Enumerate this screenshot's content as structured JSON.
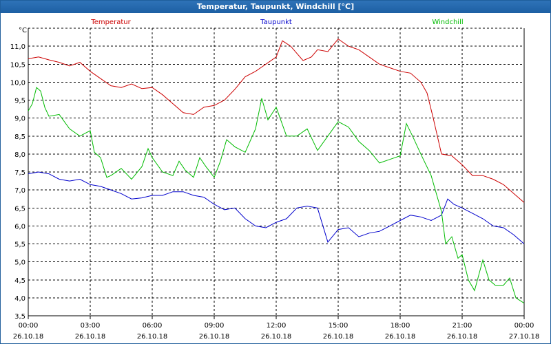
{
  "window": {
    "title": "Temperatur, Taupunkt, Windchill [°C]"
  },
  "chart_data": {
    "type": "line",
    "title": "Temperatur, Taupunkt, Windchill [°C]",
    "ylabel": "°C",
    "xlabel": "",
    "ylim": [
      3.5,
      11.5
    ],
    "xlim": [
      0,
      24
    ],
    "grid": true,
    "yticks": [
      "3,5",
      "4,0",
      "4,5",
      "5,0",
      "5,5",
      "6,0",
      "6,5",
      "7,0",
      "7,5",
      "8,0",
      "8,5",
      "9,0",
      "9,5",
      "10,0",
      "10,5",
      "11,0"
    ],
    "xticks": [
      {
        "hour": 0,
        "time": "00:00",
        "date": "26.10.18"
      },
      {
        "hour": 3,
        "time": "03:00",
        "date": "26.10.18"
      },
      {
        "hour": 6,
        "time": "06:00",
        "date": "26.10.18"
      },
      {
        "hour": 9,
        "time": "09:00",
        "date": "26.10.18"
      },
      {
        "hour": 12,
        "time": "12:00",
        "date": "26.10.18"
      },
      {
        "hour": 15,
        "time": "15:00",
        "date": "26.10.18"
      },
      {
        "hour": 18,
        "time": "18:00",
        "date": "26.10.18"
      },
      {
        "hour": 21,
        "time": "21:00",
        "date": "26.10.18"
      },
      {
        "hour": 24,
        "time": "00:00",
        "date": "27.10.18"
      }
    ],
    "series": [
      {
        "name": "Temperatur",
        "color": "#cc0000",
        "points": [
          [
            0,
            10.65
          ],
          [
            0.5,
            10.7
          ],
          [
            1,
            10.62
          ],
          [
            1.5,
            10.55
          ],
          [
            2,
            10.45
          ],
          [
            2.5,
            10.55
          ],
          [
            3,
            10.3
          ],
          [
            3.5,
            10.1
          ],
          [
            4,
            9.9
          ],
          [
            4.5,
            9.85
          ],
          [
            5,
            9.95
          ],
          [
            5.5,
            9.82
          ],
          [
            6,
            9.85
          ],
          [
            6.5,
            9.65
          ],
          [
            7,
            9.4
          ],
          [
            7.5,
            9.15
          ],
          [
            8,
            9.1
          ],
          [
            8.5,
            9.3
          ],
          [
            9,
            9.35
          ],
          [
            9.5,
            9.5
          ],
          [
            10,
            9.8
          ],
          [
            10.5,
            10.15
          ],
          [
            11,
            10.3
          ],
          [
            11.5,
            10.5
          ],
          [
            12,
            10.7
          ],
          [
            12.3,
            11.15
          ],
          [
            12.7,
            11.0
          ],
          [
            13,
            10.8
          ],
          [
            13.3,
            10.6
          ],
          [
            13.7,
            10.7
          ],
          [
            14,
            10.9
          ],
          [
            14.5,
            10.85
          ],
          [
            15,
            11.2
          ],
          [
            15.5,
            11.0
          ],
          [
            16,
            10.9
          ],
          [
            16.5,
            10.7
          ],
          [
            17,
            10.5
          ],
          [
            17.5,
            10.4
          ],
          [
            18,
            10.3
          ],
          [
            18.5,
            10.25
          ],
          [
            19,
            10.0
          ],
          [
            19.3,
            9.7
          ],
          [
            19.6,
            9.0
          ],
          [
            19.8,
            8.5
          ],
          [
            20,
            8.0
          ],
          [
            20.5,
            7.95
          ],
          [
            21,
            7.7
          ],
          [
            21.5,
            7.4
          ],
          [
            22,
            7.4
          ],
          [
            22.5,
            7.3
          ],
          [
            23,
            7.15
          ],
          [
            23.5,
            6.9
          ],
          [
            24,
            6.65
          ]
        ]
      },
      {
        "name": "Taupunkt",
        "color": "#0000cc",
        "points": [
          [
            0,
            7.45
          ],
          [
            0.5,
            7.5
          ],
          [
            1,
            7.45
          ],
          [
            1.5,
            7.3
          ],
          [
            2,
            7.25
          ],
          [
            2.5,
            7.3
          ],
          [
            3,
            7.15
          ],
          [
            3.5,
            7.1
          ],
          [
            4,
            7.0
          ],
          [
            4.5,
            6.9
          ],
          [
            5,
            6.75
          ],
          [
            5.5,
            6.78
          ],
          [
            6,
            6.85
          ],
          [
            6.5,
            6.85
          ],
          [
            7,
            6.95
          ],
          [
            7.5,
            6.95
          ],
          [
            8,
            6.85
          ],
          [
            8.5,
            6.8
          ],
          [
            9,
            6.6
          ],
          [
            9.5,
            6.45
          ],
          [
            10,
            6.5
          ],
          [
            10.5,
            6.2
          ],
          [
            11,
            6.0
          ],
          [
            11.5,
            5.95
          ],
          [
            12,
            6.1
          ],
          [
            12.5,
            6.2
          ],
          [
            13,
            6.5
          ],
          [
            13.5,
            6.55
          ],
          [
            14,
            6.5
          ],
          [
            14.5,
            5.55
          ],
          [
            15,
            5.9
          ],
          [
            15.5,
            5.95
          ],
          [
            16,
            5.7
          ],
          [
            16.5,
            5.8
          ],
          [
            17,
            5.85
          ],
          [
            17.5,
            6.0
          ],
          [
            18,
            6.15
          ],
          [
            18.5,
            6.3
          ],
          [
            19,
            6.25
          ],
          [
            19.5,
            6.15
          ],
          [
            20,
            6.3
          ],
          [
            20.3,
            6.75
          ],
          [
            20.6,
            6.6
          ],
          [
            21,
            6.5
          ],
          [
            21.5,
            6.35
          ],
          [
            22,
            6.2
          ],
          [
            22.5,
            6.0
          ],
          [
            23,
            5.95
          ],
          [
            23.5,
            5.75
          ],
          [
            24,
            5.5
          ]
        ]
      },
      {
        "name": "Windchill",
        "color": "#00bb00",
        "points": [
          [
            0,
            9.2
          ],
          [
            0.2,
            9.4
          ],
          [
            0.4,
            9.85
          ],
          [
            0.6,
            9.75
          ],
          [
            0.8,
            9.3
          ],
          [
            1,
            9.05
          ],
          [
            1.5,
            9.1
          ],
          [
            2,
            8.7
          ],
          [
            2.5,
            8.5
          ],
          [
            3,
            8.65
          ],
          [
            3.2,
            8.05
          ],
          [
            3.5,
            7.9
          ],
          [
            3.8,
            7.35
          ],
          [
            4,
            7.4
          ],
          [
            4.5,
            7.6
          ],
          [
            5,
            7.3
          ],
          [
            5.5,
            7.65
          ],
          [
            5.8,
            8.15
          ],
          [
            6,
            7.9
          ],
          [
            6.5,
            7.5
          ],
          [
            7,
            7.4
          ],
          [
            7.3,
            7.8
          ],
          [
            7.6,
            7.55
          ],
          [
            8,
            7.35
          ],
          [
            8.3,
            7.9
          ],
          [
            8.6,
            7.65
          ],
          [
            9,
            7.35
          ],
          [
            9.3,
            7.8
          ],
          [
            9.6,
            8.4
          ],
          [
            10,
            8.2
          ],
          [
            10.5,
            8.05
          ],
          [
            11,
            8.7
          ],
          [
            11.3,
            9.55
          ],
          [
            11.6,
            8.95
          ],
          [
            12,
            9.3
          ],
          [
            12.5,
            8.5
          ],
          [
            13,
            8.5
          ],
          [
            13.5,
            8.7
          ],
          [
            14,
            8.1
          ],
          [
            14.5,
            8.5
          ],
          [
            15,
            8.9
          ],
          [
            15.5,
            8.75
          ],
          [
            16,
            8.35
          ],
          [
            16.5,
            8.1
          ],
          [
            17,
            7.75
          ],
          [
            17.5,
            7.85
          ],
          [
            18,
            7.95
          ],
          [
            18.3,
            8.85
          ],
          [
            18.6,
            8.5
          ],
          [
            19,
            8.0
          ],
          [
            19.5,
            7.4
          ],
          [
            20,
            6.4
          ],
          [
            20.2,
            5.5
          ],
          [
            20.5,
            5.7
          ],
          [
            20.8,
            5.1
          ],
          [
            21,
            5.2
          ],
          [
            21.3,
            4.5
          ],
          [
            21.6,
            4.2
          ],
          [
            22,
            5.05
          ],
          [
            22.3,
            4.5
          ],
          [
            22.6,
            4.35
          ],
          [
            23,
            4.35
          ],
          [
            23.3,
            4.55
          ],
          [
            23.6,
            4.0
          ],
          [
            24,
            3.85
          ]
        ]
      }
    ]
  }
}
